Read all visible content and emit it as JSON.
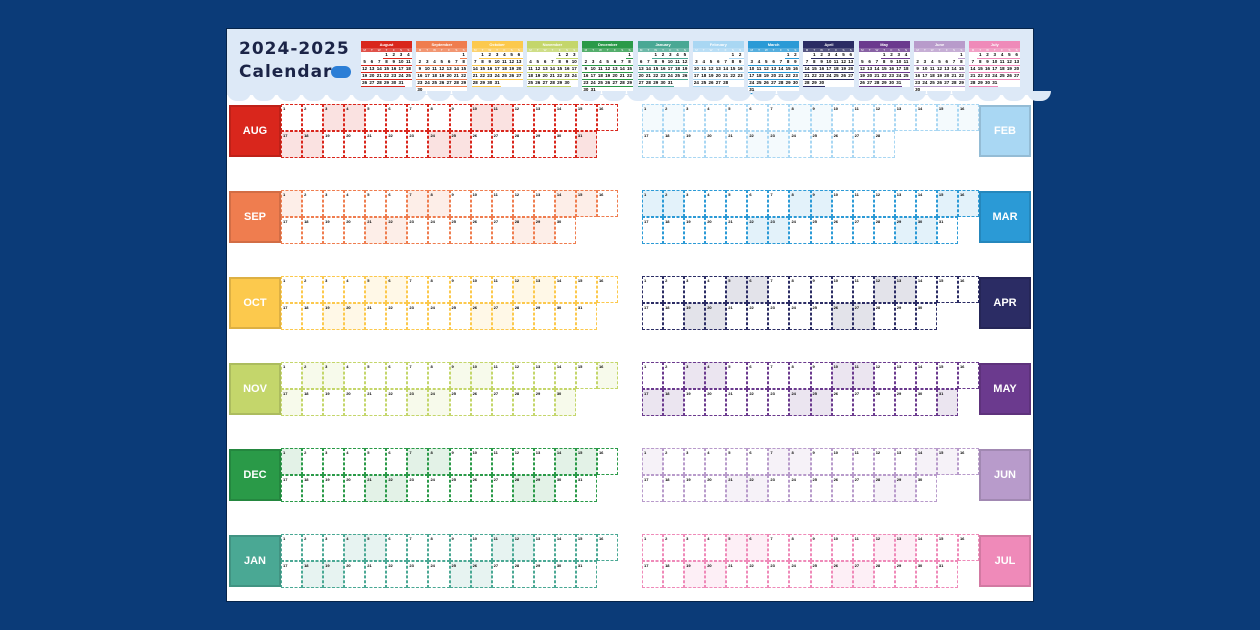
{
  "title": {
    "line1": "2024-2025",
    "line2": "Calendar"
  },
  "weekday_headers": [
    "M",
    "T",
    "W",
    "T",
    "F",
    "S",
    "S"
  ],
  "months": [
    {
      "label": "AUG",
      "name": "August",
      "days": 31,
      "start_weekday": 3,
      "color": "#d9261c",
      "side": "left"
    },
    {
      "label": "SEP",
      "name": "September",
      "days": 30,
      "start_weekday": 6,
      "color": "#ef7d4f",
      "side": "left"
    },
    {
      "label": "OCT",
      "name": "October",
      "days": 31,
      "start_weekday": 1,
      "color": "#fcc94d",
      "side": "left"
    },
    {
      "label": "NOV",
      "name": "November",
      "days": 30,
      "start_weekday": 4,
      "color": "#c4d66b",
      "side": "left"
    },
    {
      "label": "DEC",
      "name": "December",
      "days": 31,
      "start_weekday": 6,
      "color": "#2a9a48",
      "side": "left"
    },
    {
      "label": "JAN",
      "name": "January",
      "days": 31,
      "start_weekday": 2,
      "color": "#4aa894",
      "side": "left"
    },
    {
      "label": "FEB",
      "name": "February",
      "days": 28,
      "start_weekday": 5,
      "color": "#a9d7f3",
      "side": "right"
    },
    {
      "label": "MAR",
      "name": "March",
      "days": 31,
      "start_weekday": 5,
      "color": "#2b9ad6",
      "side": "right"
    },
    {
      "label": "APR",
      "name": "April",
      "days": 30,
      "start_weekday": 1,
      "color": "#2b2c64",
      "side": "right"
    },
    {
      "label": "MAY",
      "name": "May",
      "days": 31,
      "start_weekday": 3,
      "color": "#6b3a8e",
      "side": "right"
    },
    {
      "label": "JUN",
      "name": "June",
      "days": 30,
      "start_weekday": 6,
      "color": "#b89bcb",
      "side": "right"
    },
    {
      "label": "JUL",
      "name": "July",
      "days": 31,
      "start_weekday": 1,
      "color": "#ef8ab9",
      "side": "right"
    }
  ]
}
